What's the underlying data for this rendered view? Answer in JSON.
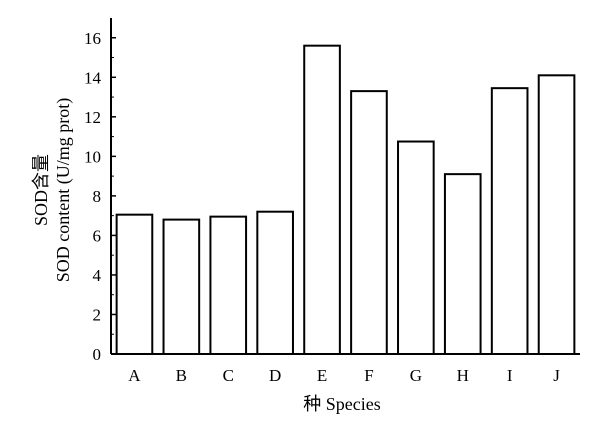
{
  "chart_data": {
    "type": "bar",
    "categories": [
      "A",
      "B",
      "C",
      "D",
      "E",
      "F",
      "G",
      "H",
      "I",
      "J"
    ],
    "values": [
      7.05,
      6.8,
      6.95,
      7.2,
      15.6,
      13.3,
      10.75,
      9.1,
      13.45,
      14.1
    ],
    "xlabel": "种 Species",
    "ylabel_line1": "SOD含量",
    "ylabel_line2": "SOD content (U/mg prot)",
    "ylim": [
      0,
      17
    ],
    "yticks": [
      0,
      2,
      4,
      6,
      8,
      10,
      12,
      14,
      16
    ],
    "bar_fill": "#ffffff",
    "bar_stroke": "#000000",
    "grid": false,
    "legend": "none"
  }
}
